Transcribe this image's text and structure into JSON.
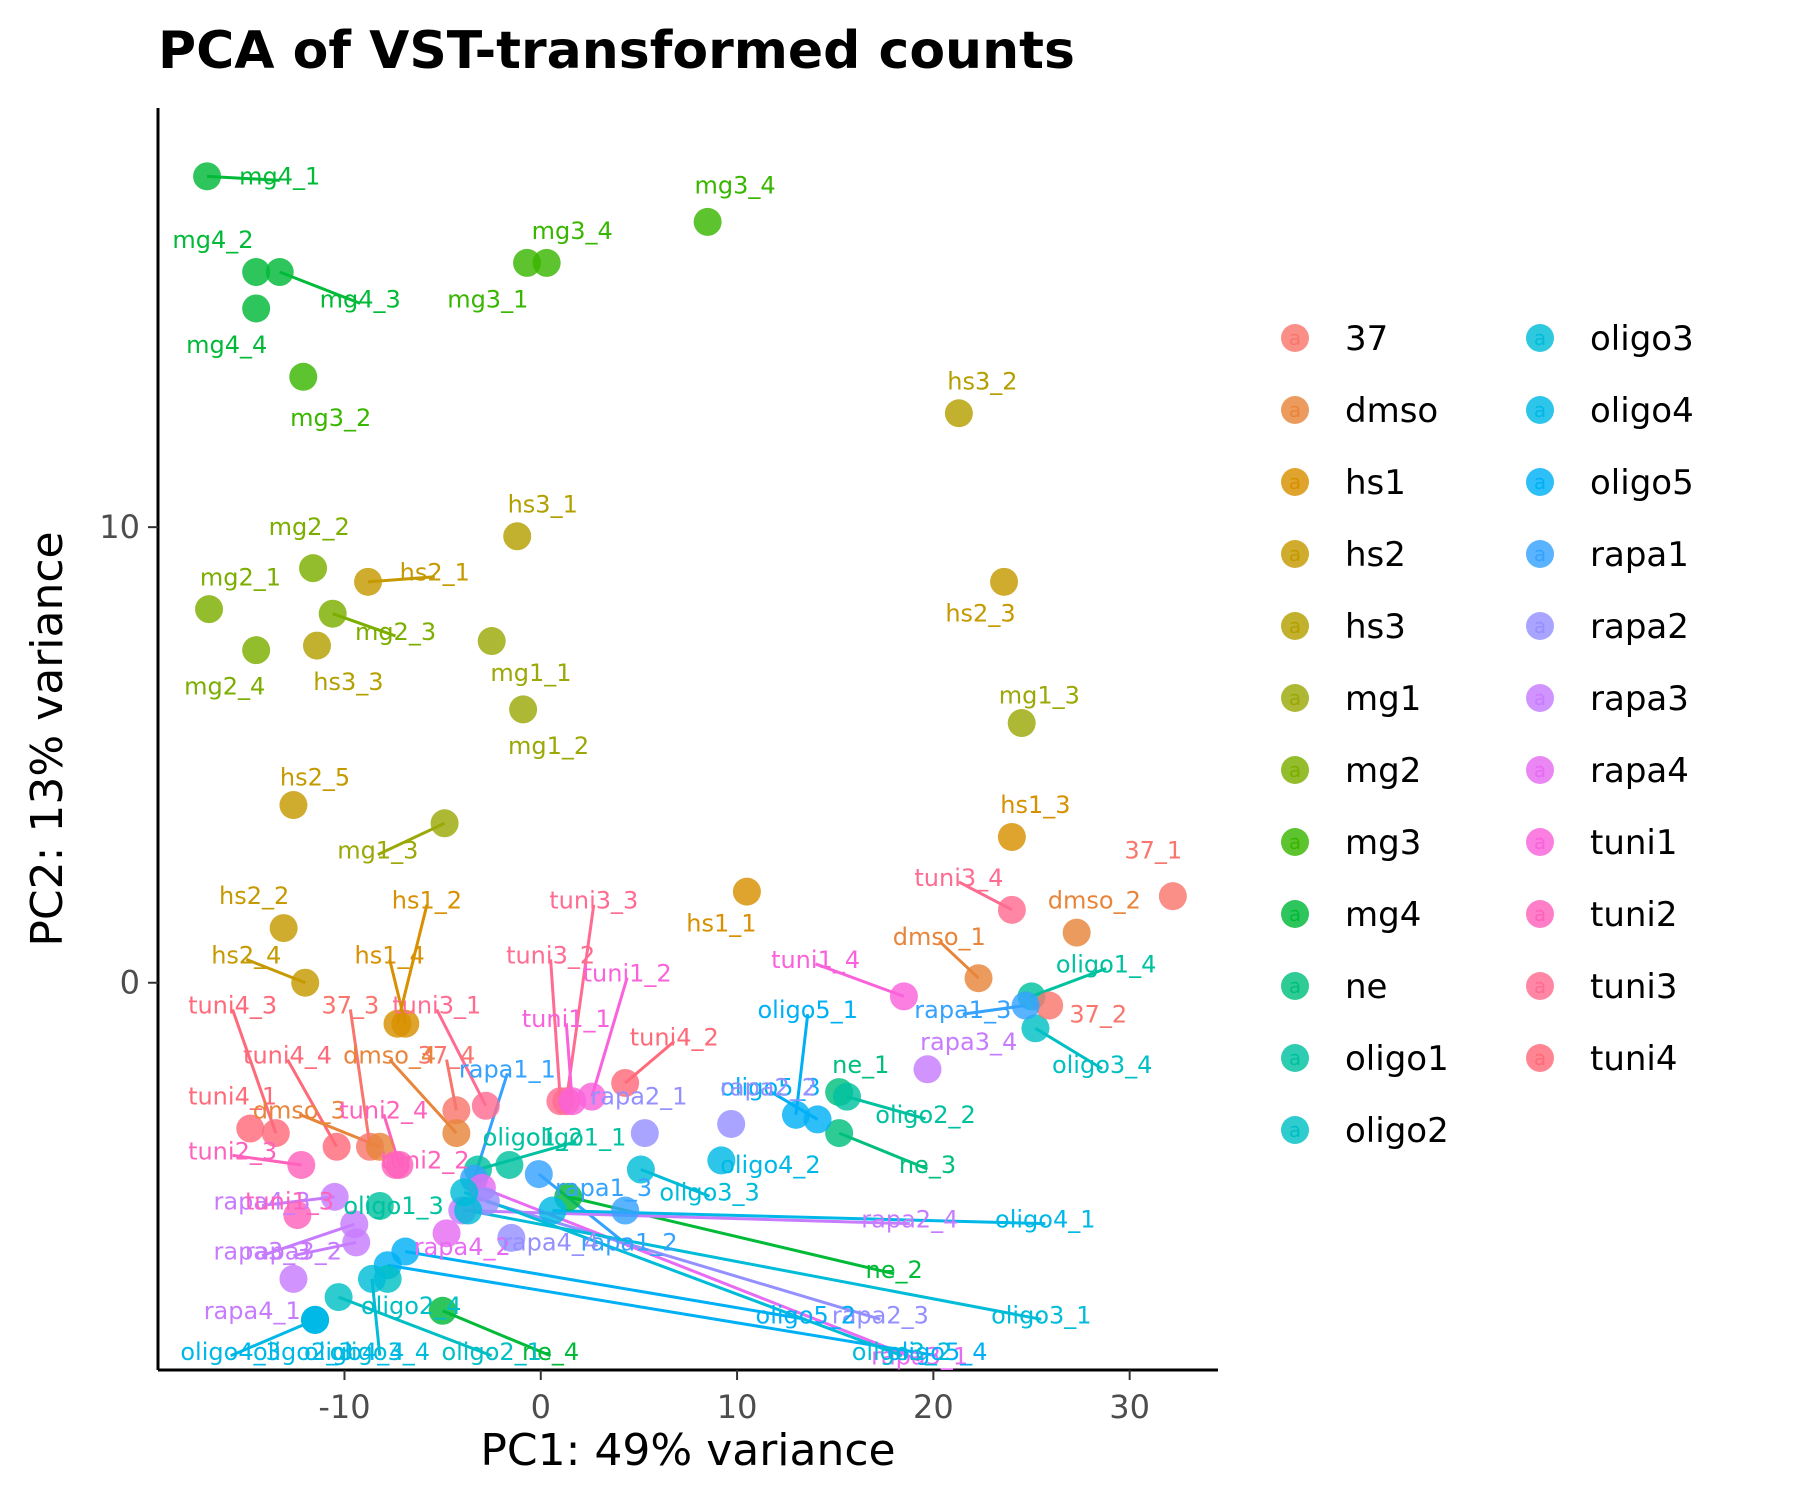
{
  "chart_data": {
    "type": "scatter",
    "title": "PCA of VST-transformed counts",
    "xlabel": "PC1: 49% variance",
    "ylabel": "PC2: 13% variance",
    "xlim": [
      -19.5,
      34.5
    ],
    "ylim": [
      -8.5,
      19.2
    ],
    "xticks": [
      -10,
      0,
      10,
      20,
      30
    ],
    "xtick_labels": [
      "-10",
      "0",
      "10",
      "20",
      "30"
    ],
    "yticks": [
      0,
      10
    ],
    "ytick_labels": [
      "0",
      "10"
    ],
    "grid": false,
    "legend": {
      "placement": "right",
      "columns": 2,
      "key_glyph": "a",
      "entries": [
        {
          "name": "37",
          "color": "#F8766D"
        },
        {
          "name": "dmso",
          "color": "#E8853A"
        },
        {
          "name": "hs1",
          "color": "#D89000"
        },
        {
          "name": "hs2",
          "color": "#C59900"
        },
        {
          "name": "hs3",
          "color": "#B3A000"
        },
        {
          "name": "mg1",
          "color": "#9BA808"
        },
        {
          "name": "mg2",
          "color": "#7CAE00"
        },
        {
          "name": "mg3",
          "color": "#39B600"
        },
        {
          "name": "mg4",
          "color": "#00BA38"
        },
        {
          "name": "ne",
          "color": "#00BF7D"
        },
        {
          "name": "oligo1",
          "color": "#00C19F"
        },
        {
          "name": "oligo2",
          "color": "#00BFC4"
        },
        {
          "name": "oligo3",
          "color": "#00BCD8"
        },
        {
          "name": "oligo4",
          "color": "#00B8E7"
        },
        {
          "name": "oligo5",
          "color": "#00B0F6"
        },
        {
          "name": "rapa1",
          "color": "#35A2FF"
        },
        {
          "name": "rapa2",
          "color": "#9590FF"
        },
        {
          "name": "rapa3",
          "color": "#C77CFF"
        },
        {
          "name": "rapa4",
          "color": "#E76BF3"
        },
        {
          "name": "tuni1",
          "color": "#FA62DB"
        },
        {
          "name": "tuni2",
          "color": "#FF62BC"
        },
        {
          "name": "tuni3",
          "color": "#FF6C91"
        },
        {
          "name": "tuni4",
          "color": "#FF6A7A"
        }
      ]
    },
    "points": [
      {
        "group": "mg4",
        "label": "mg4_1",
        "x": -17.0,
        "y": 17.7,
        "lx": -13.3,
        "ly": 17.7
      },
      {
        "group": "mg4",
        "label": "mg4_2",
        "x": -14.5,
        "y": 15.6,
        "lx": -16.7,
        "ly": 16.3
      },
      {
        "group": "mg4",
        "label": "mg4_3",
        "x": -13.3,
        "y": 15.6,
        "lx": -9.2,
        "ly": 15.0
      },
      {
        "group": "mg4",
        "label": "mg4_4",
        "x": -14.5,
        "y": 14.8,
        "lx": -16.0,
        "ly": 14.0
      },
      {
        "group": "mg3",
        "label": "mg3_1",
        "x": -0.7,
        "y": 15.8,
        "lx": -2.7,
        "ly": 15.0
      },
      {
        "group": "mg3",
        "label": "mg3_4",
        "x": 0.3,
        "y": 15.8,
        "lx": 1.6,
        "ly": 16.5
      },
      {
        "group": "mg3",
        "label": "mg3_4",
        "x": 8.5,
        "y": 16.7,
        "lx": 9.9,
        "ly": 17.5
      },
      {
        "group": "mg3",
        "label": "mg3_2",
        "x": -12.1,
        "y": 13.3,
        "lx": -10.7,
        "ly": 12.4
      },
      {
        "group": "hs3",
        "label": "hs3_2",
        "x": 21.3,
        "y": 12.5,
        "lx": 22.5,
        "ly": 13.2
      },
      {
        "group": "hs3",
        "label": "hs3_1",
        "x": -1.2,
        "y": 9.8,
        "lx": 0.1,
        "ly": 10.5
      },
      {
        "group": "hs3",
        "label": "hs3_3",
        "x": -11.4,
        "y": 7.4,
        "lx": -9.8,
        "ly": 6.6
      },
      {
        "group": "mg2",
        "label": "mg2_2",
        "x": -11.6,
        "y": 9.1,
        "lx": -11.8,
        "ly": 10.0
      },
      {
        "group": "mg2",
        "label": "mg2_1",
        "x": -16.9,
        "y": 8.2,
        "lx": -15.3,
        "ly": 8.9
      },
      {
        "group": "mg2",
        "label": "mg2_3",
        "x": -10.6,
        "y": 8.1,
        "lx": -7.4,
        "ly": 7.7
      },
      {
        "group": "mg2",
        "label": "mg2_4",
        "x": -14.5,
        "y": 7.3,
        "lx": -16.1,
        "ly": 6.5
      },
      {
        "group": "hs2",
        "label": "hs2_1",
        "x": -8.8,
        "y": 8.8,
        "lx": -5.4,
        "ly": 9.0
      },
      {
        "group": "hs2",
        "label": "hs2_3",
        "x": 23.6,
        "y": 8.8,
        "lx": 22.4,
        "ly": 8.1
      },
      {
        "group": "mg1",
        "label": "mg1_1",
        "x": -2.5,
        "y": 7.5,
        "lx": -0.5,
        "ly": 6.8
      },
      {
        "group": "mg1",
        "label": "mg1_2",
        "x": -0.9,
        "y": 6.0,
        "lx": 0.4,
        "ly": 5.2
      },
      {
        "group": "mg1",
        "label": "mg1_3",
        "x": 24.5,
        "y": 5.7,
        "lx": 25.4,
        "ly": 6.3
      },
      {
        "group": "mg1",
        "label": "mg1_3",
        "x": -4.9,
        "y": 3.5,
        "lx": -8.3,
        "ly": 2.9
      },
      {
        "group": "hs2",
        "label": "hs2_5",
        "x": -12.6,
        "y": 3.9,
        "lx": -11.5,
        "ly": 4.5
      },
      {
        "group": "hs1",
        "label": "hs1_3",
        "x": 24.0,
        "y": 3.2,
        "lx": 25.2,
        "ly": 3.9
      },
      {
        "group": "37",
        "label": "37_1",
        "x": 32.2,
        "y": 1.9,
        "lx": 31.2,
        "ly": 2.9
      },
      {
        "group": "hs1",
        "label": "hs1_1",
        "x": 10.5,
        "y": 2.0,
        "lx": 9.2,
        "ly": 1.3
      },
      {
        "group": "dmso",
        "label": "dmso_2",
        "x": 27.3,
        "y": 1.1,
        "lx": 28.2,
        "ly": 1.8
      },
      {
        "group": "dmso",
        "label": "dmso_1",
        "x": 22.3,
        "y": 0.1,
        "lx": 20.3,
        "ly": 1.0
      },
      {
        "group": "tuni3",
        "label": "tuni3_4",
        "x": 24.0,
        "y": 1.6,
        "lx": 21.3,
        "ly": 2.3
      },
      {
        "group": "hs2",
        "label": "hs2_2",
        "x": -13.1,
        "y": 1.2,
        "lx": -14.6,
        "ly": 1.9
      },
      {
        "group": "hs2",
        "label": "hs2_4",
        "x": -12.0,
        "y": 0.0,
        "lx": -15.0,
        "ly": 0.6
      },
      {
        "group": "hs1",
        "label": "hs1_2",
        "x": -7.3,
        "y": -0.9,
        "lx": -5.8,
        "ly": 1.8
      },
      {
        "group": "hs1",
        "label": "hs1_4",
        "x": -6.9,
        "y": -0.9,
        "lx": -7.7,
        "ly": 0.6
      },
      {
        "group": "oligo1",
        "label": "oligo1_4",
        "x": 25.0,
        "y": -0.3,
        "lx": 28.8,
        "ly": 0.4
      },
      {
        "group": "oligo2",
        "label": "oligo3_4",
        "x": 25.2,
        "y": -1.0,
        "lx": 28.6,
        "ly": -1.8
      },
      {
        "group": "37",
        "label": "37_2",
        "x": 25.9,
        "y": -0.5,
        "lx": 28.4,
        "ly": -0.7
      },
      {
        "group": "rapa1",
        "label": "rapa1_3",
        "x": 24.7,
        "y": -0.5,
        "lx": 21.5,
        "ly": -0.6
      },
      {
        "group": "tuni1",
        "label": "tuni1_4",
        "x": 18.5,
        "y": -0.3,
        "lx": 14.0,
        "ly": 0.5
      },
      {
        "group": "rapa3",
        "label": "rapa3_4",
        "x": 19.7,
        "y": -1.9,
        "lx": 21.8,
        "ly": -1.3
      },
      {
        "group": "oligo5",
        "label": "oligo5_1",
        "x": 13.0,
        "y": -2.9,
        "lx": 13.6,
        "ly": -0.6
      },
      {
        "group": "ne",
        "label": "ne_1",
        "x": 15.2,
        "y": -2.4,
        "lx": 16.3,
        "ly": -1.8
      },
      {
        "group": "oligo1",
        "label": "oligo2_2",
        "x": 15.6,
        "y": -2.5,
        "lx": 19.6,
        "ly": -2.9
      },
      {
        "group": "ne",
        "label": "ne_3",
        "x": 15.2,
        "y": -3.3,
        "lx": 19.7,
        "ly": -4.0
      },
      {
        "group": "oligo5",
        "label": "oligo5_3",
        "x": 14.1,
        "y": -3.0,
        "lx": 11.7,
        "ly": -2.3
      },
      {
        "group": "rapa2",
        "label": "rapa2_2",
        "x": 9.7,
        "y": -3.1,
        "lx": 11.6,
        "ly": -2.3
      },
      {
        "group": "rapa2",
        "label": "rapa2_1",
        "x": 5.3,
        "y": -3.3,
        "lx": 5.0,
        "ly": -2.5
      },
      {
        "group": "oligo4",
        "label": "oligo4_2",
        "x": 9.2,
        "y": -3.9,
        "lx": 11.7,
        "ly": -4.0
      },
      {
        "group": "oligo3",
        "label": "oligo3_3",
        "x": 5.1,
        "y": -4.1,
        "lx": 8.6,
        "ly": -4.6
      },
      {
        "group": "tuni3",
        "label": "tuni3_3",
        "x": 1.3,
        "y": -2.6,
        "lx": 2.7,
        "ly": 1.8
      },
      {
        "group": "tuni3",
        "label": "tuni3_2",
        "x": 1.0,
        "y": -2.6,
        "lx": 0.5,
        "ly": 0.6
      },
      {
        "group": "tuni1",
        "label": "tuni1_2",
        "x": 2.6,
        "y": -2.5,
        "lx": 4.4,
        "ly": 0.2
      },
      {
        "group": "tuni1",
        "label": "tuni1_1",
        "x": 1.6,
        "y": -2.6,
        "lx": 1.3,
        "ly": -0.8
      },
      {
        "group": "tuni4",
        "label": "tuni4_2",
        "x": 4.3,
        "y": -2.2,
        "lx": 6.8,
        "ly": -1.2
      },
      {
        "group": "tuni3",
        "label": "tuni3_1",
        "x": -2.8,
        "y": -2.7,
        "lx": -5.3,
        "ly": -0.5
      },
      {
        "group": "37",
        "label": "37_4",
        "x": -4.3,
        "y": -2.8,
        "lx": -4.8,
        "ly": -1.6
      },
      {
        "group": "dmso",
        "label": "dmso_4",
        "x": -4.3,
        "y": -3.3,
        "lx": -7.7,
        "ly": -1.6
      },
      {
        "group": "tuni4",
        "label": "tuni4_3",
        "x": -13.5,
        "y": -3.3,
        "lx": -15.7,
        "ly": -0.5
      },
      {
        "group": "tuni4",
        "label": "tuni4_4",
        "x": -10.4,
        "y": -3.6,
        "lx": -12.9,
        "ly": -1.6
      },
      {
        "group": "37",
        "label": "37_3",
        "x": -8.7,
        "y": -3.6,
        "lx": -9.7,
        "ly": -0.5
      },
      {
        "group": "tuni4",
        "label": "tuni4_1",
        "x": -14.8,
        "y": -3.2,
        "lx": -15.7,
        "ly": -2.5
      },
      {
        "group": "dmso",
        "label": "dmso_3",
        "x": -8.2,
        "y": -3.6,
        "lx": -12.3,
        "ly": -2.8
      },
      {
        "group": "tuni2",
        "label": "tuni2_4",
        "x": -7.2,
        "y": -4.0,
        "lx": -8.0,
        "ly": -2.8
      },
      {
        "group": "tuni2",
        "label": "tuni2_3",
        "x": -12.2,
        "y": -4.0,
        "lx": -15.7,
        "ly": -3.7
      },
      {
        "group": "tuni2",
        "label": "tuni2_2",
        "x": -7.4,
        "y": -4.0,
        "lx": -5.9,
        "ly": -3.9
      },
      {
        "group": "oligo1",
        "label": "oligo1_2",
        "x": -1.6,
        "y": -4.0,
        "lx": -0.4,
        "ly": -3.4
      },
      {
        "group": "oligo1",
        "label": "oligo1_1",
        "x": -3.2,
        "y": -4.1,
        "lx": 1.8,
        "ly": -3.4
      },
      {
        "group": "rapa1",
        "label": "rapa1_1",
        "x": -3.4,
        "y": -4.3,
        "lx": -1.7,
        "ly": -1.9
      },
      {
        "group": "rapa1",
        "label": "rapa1_2",
        "x": -0.1,
        "y": -4.2,
        "lx": 4.5,
        "ly": -5.7
      },
      {
        "group": "rapa1",
        "label": "rapa1_3",
        "x": 4.3,
        "y": -5.0,
        "lx": 3.2,
        "ly": -4.5
      },
      {
        "group": "mg4",
        "label": "ne_2",
        "x": 1.4,
        "y": -4.7,
        "lx": 18.0,
        "ly": -6.3
      },
      {
        "group": "oligo1",
        "label": "oligo1_3",
        "x": -8.2,
        "y": -4.9,
        "lx": -7.5,
        "ly": -4.9
      },
      {
        "group": "rapa3",
        "label": "rapa2_4",
        "x": -4.0,
        "y": -5.0,
        "lx": 18.8,
        "ly": -5.2
      },
      {
        "group": "oligo4",
        "label": "oligo4_1",
        "x": 0.6,
        "y": -5.0,
        "lx": 25.7,
        "ly": -5.2
      },
      {
        "group": "rapa3",
        "label": "rapa4_1",
        "x": -12.6,
        "y": -6.5,
        "lx": -14.7,
        "ly": -7.2
      },
      {
        "group": "rapa3",
        "label": "rapa4_3",
        "x": -10.5,
        "y": -4.7,
        "lx": -14.2,
        "ly": -4.8
      },
      {
        "group": "rapa4",
        "label": "rapa4_2",
        "x": -4.8,
        "y": -5.5,
        "lx": -4.0,
        "ly": -5.8
      },
      {
        "group": "tuni2",
        "label": "tuni1_3",
        "x": -12.4,
        "y": -5.1,
        "lx": -12.8,
        "ly": -4.8
      },
      {
        "group": "rapa3",
        "label": "rapa3_2",
        "x": -9.4,
        "y": -5.7,
        "lx": -12.6,
        "ly": -5.9
      },
      {
        "group": "rapa3",
        "label": "rapa3_3",
        "x": -9.5,
        "y": -5.3,
        "lx": -14.2,
        "ly": -5.9
      },
      {
        "group": "rapa2",
        "label": "rapa4_4",
        "x": -1.5,
        "y": -5.6,
        "lx": 0.5,
        "ly": -5.7
      },
      {
        "group": "rapa4",
        "label": "rapa3_1",
        "x": -3.0,
        "y": -4.5,
        "lx": 19.3,
        "ly": -8.2
      },
      {
        "group": "rapa2",
        "label": "rapa2_3",
        "x": -2.8,
        "y": -4.8,
        "lx": 17.3,
        "ly": -7.3
      },
      {
        "group": "oligo5",
        "label": "oligo5_2",
        "x": -6.9,
        "y": -5.9,
        "lx": 13.5,
        "ly": -7.3
      },
      {
        "group": "oligo5",
        "label": "oligo5_4",
        "x": -7.8,
        "y": -6.2,
        "lx": 20.2,
        "ly": -8.1
      },
      {
        "group": "oligo3",
        "label": "oligo3_2",
        "x": -3.9,
        "y": -4.6,
        "lx": 18.4,
        "ly": -8.1
      },
      {
        "group": "oligo3",
        "label": "oligo3_1",
        "x": -3.7,
        "y": -5.0,
        "lx": 25.5,
        "ly": -7.3
      },
      {
        "group": "mg4",
        "label": "ne_4",
        "x": -5.0,
        "y": -7.2,
        "lx": 0.5,
        "ly": -8.1
      },
      {
        "group": "oligo2",
        "label": "oligo2_4",
        "x": -7.8,
        "y": -6.5,
        "lx": -6.6,
        "ly": -7.1
      },
      {
        "group": "oligo2",
        "label": "oligo2_1",
        "x": -10.3,
        "y": -6.9,
        "lx": -2.5,
        "ly": -8.1
      },
      {
        "group": "oligo3",
        "label": "oligo3_4",
        "x": -8.6,
        "y": -6.5,
        "lx": -8.2,
        "ly": -8.1
      },
      {
        "group": "oligo4",
        "label": "oligo4_3",
        "x": -11.5,
        "y": -7.4,
        "lx": -15.8,
        "ly": -8.1
      },
      {
        "group": "oligo4",
        "label": "oligo2_3",
        "x": -11.5,
        "y": -7.4,
        "lx": -12.1,
        "ly": -8.1
      },
      {
        "group": "oligo4",
        "label": "oligo4_4",
        "x": -11.5,
        "y": -7.4,
        "lx": -9.5,
        "ly": -8.1
      }
    ]
  }
}
